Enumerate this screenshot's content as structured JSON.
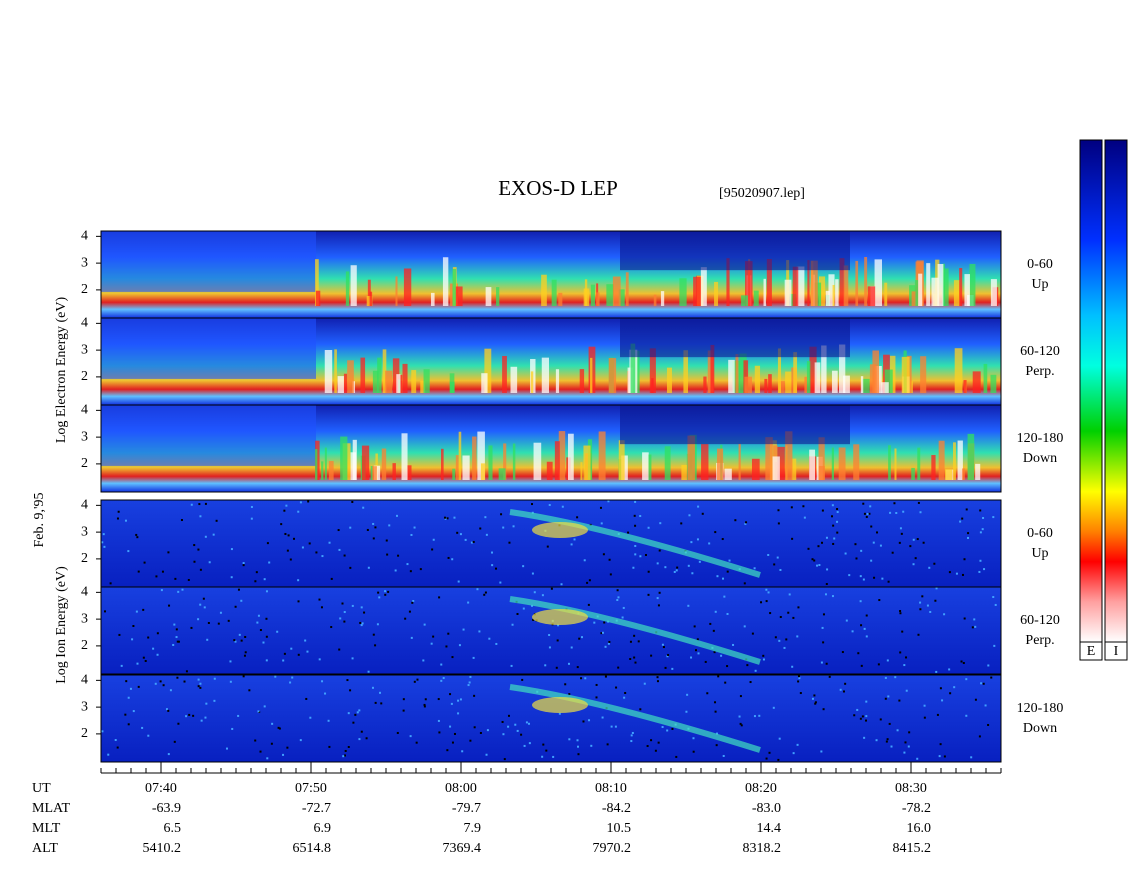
{
  "title": "EXOS-D LEP",
  "file": "[95020907.lep]",
  "date": "Feb. 9,'95",
  "energy_axis": {
    "ylim": [
      0.95,
      4.2
    ],
    "yticks": [
      2,
      3,
      4
    ]
  },
  "groups": [
    {
      "ylabel": "Log  Electron  Energy  (eV)",
      "panels": [
        [
          "0-60",
          "Up"
        ],
        [
          "60-120",
          "Perp."
        ],
        [
          "120-180",
          "Down"
        ]
      ]
    },
    {
      "ylabel": "Log  Ion  Energy  (eV)",
      "panels": [
        [
          "0-60",
          "Up"
        ],
        [
          "60-120",
          "Perp."
        ],
        [
          "120-180",
          "Down"
        ]
      ]
    }
  ],
  "time_axis": {
    "label": "UT",
    "xlim": [
      "07:36",
      "08:36"
    ],
    "xticks": [
      "07:40",
      "07:50",
      "08:00",
      "08:10",
      "08:20",
      "08:30"
    ]
  },
  "ephemeris": [
    {
      "label": "MLAT",
      "values": [
        "-63.9",
        "-72.7",
        "-79.7",
        "-84.2",
        "-83.0",
        "-78.2"
      ]
    },
    {
      "label": "MLT",
      "values": [
        "6.5",
        "6.9",
        "7.9",
        "10.5",
        "14.4",
        "16.0"
      ]
    },
    {
      "label": "ALT",
      "values": [
        "5410.2",
        "6514.8",
        "7369.4",
        "7970.2",
        "8318.2",
        "8415.2"
      ]
    }
  ],
  "colorbars": [
    "E",
    "I"
  ]
}
